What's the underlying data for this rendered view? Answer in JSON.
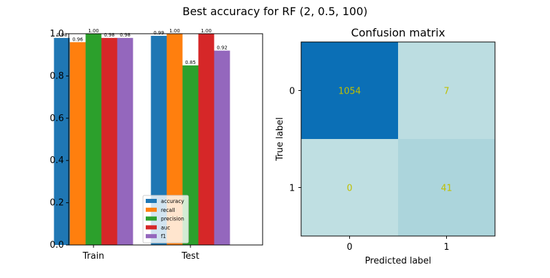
{
  "figure": {
    "suptitle": "Best accuracy for RF (2, 0.5, 100)"
  },
  "chart_data": [
    {
      "type": "bar",
      "title": "",
      "xlabel": "",
      "ylabel": "",
      "categories": [
        "Train",
        "Test"
      ],
      "ylim": [
        0,
        1.0
      ],
      "yticks": [
        "0.0",
        "0.2",
        "0.4",
        "0.6",
        "0.8",
        "1.0"
      ],
      "legend_position": "lower-center",
      "series": [
        {
          "name": "accuracy",
          "color": "#1f77b4",
          "values": [
            0.98,
            0.99
          ],
          "labels": [
            "0.98",
            "0.99"
          ]
        },
        {
          "name": "recall",
          "color": "#ff7f0e",
          "values": [
            0.96,
            1.0
          ],
          "labels": [
            "0.96",
            "1.00"
          ]
        },
        {
          "name": "precision",
          "color": "#2ca02c",
          "values": [
            1.0,
            0.85
          ],
          "labels": [
            "1.00",
            "0.85"
          ]
        },
        {
          "name": "auc",
          "color": "#d62728",
          "values": [
            0.98,
            1.0
          ],
          "labels": [
            "0.98",
            "1.00"
          ]
        },
        {
          "name": "f1",
          "color": "#9467bd",
          "values": [
            0.98,
            0.92
          ],
          "labels": [
            "0.98",
            "0.92"
          ]
        }
      ]
    },
    {
      "type": "heatmap",
      "title": "Confusion matrix",
      "xlabel": "Predicted label",
      "ylabel": "True label",
      "x_ticks": [
        "0",
        "1"
      ],
      "y_ticks": [
        "0",
        "1"
      ],
      "cells": [
        [
          {
            "value": 1054,
            "text": "1054",
            "color": "#0b6fb6"
          },
          {
            "value": 7,
            "text": "7",
            "color": "#bcdde1"
          }
        ],
        [
          {
            "value": 0,
            "text": "0",
            "color": "#bfdfe2"
          },
          {
            "value": 41,
            "text": "41",
            "color": "#acd5dc"
          }
        ]
      ],
      "text_color": "#bfbf00"
    }
  ]
}
